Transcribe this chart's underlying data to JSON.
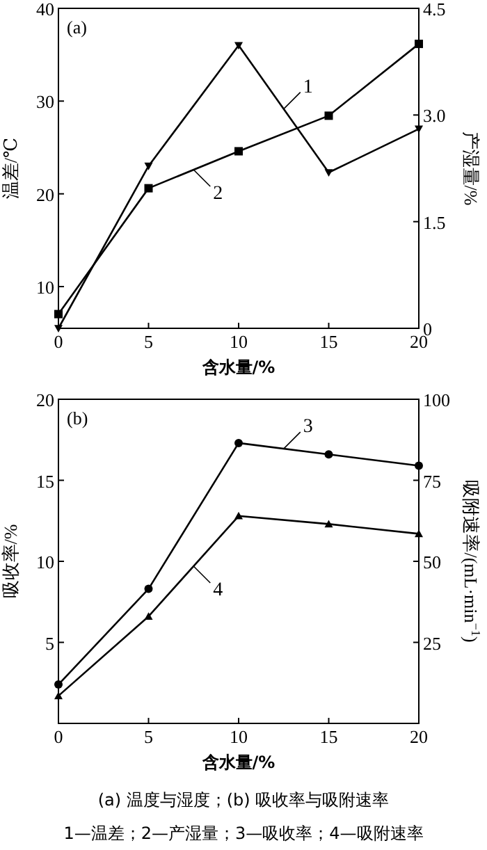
{
  "chart_data": [
    {
      "type": "line",
      "xlabel": "含水量/%",
      "ylabel": "温差/℃",
      "y2label": "产湿量/%",
      "annotations": [
        "(a)"
      ],
      "x": [
        0,
        5,
        10,
        15,
        20
      ],
      "xlim": [
        0,
        20
      ],
      "xticks": [
        0,
        5,
        10,
        15,
        20
      ],
      "ylim": [
        5.5,
        40
      ],
      "yticks": [
        10,
        20,
        30,
        40
      ],
      "y2lim": [
        0,
        4.5
      ],
      "y2ticks": [
        0,
        1.5,
        {
          "value": 3,
          "label": "3.0"
        },
        4.5
      ],
      "grid": false,
      "legend": "top right",
      "line_style": "solid",
      "series": [
        {
          "name": "1",
          "color": "#000000",
          "marker": "triangle-down",
          "values": [
            5.5,
            23,
            36,
            22.3,
            27
          ]
        },
        {
          "name": "2",
          "color": "#000000",
          "marker": "square",
          "axis": "y2",
          "values": [
            0.2,
            1.97,
            2.49,
            2.99,
            4.0
          ]
        }
      ]
    },
    {
      "type": "line",
      "xlabel": "含水量/%",
      "ylabel": "吸收率/%",
      "y2label": "吸附速率/(mL·min$^{−1}$)",
      "annotations": [
        "(b)",
        "(a) 温度与湿度；(b) 吸收率与吸附速率",
        "1—温差；2—产湿量；3—吸收率；4—吸附速率"
      ],
      "x": [
        0,
        5,
        10,
        15,
        20
      ],
      "xlim": [
        0,
        20
      ],
      "xticks": [
        0,
        5,
        10,
        15,
        20
      ],
      "ylim": [
        0,
        20
      ],
      "yticks": [
        5,
        10,
        15,
        20
      ],
      "y2lim": [
        0,
        100
      ],
      "y2ticks": [
        25,
        50,
        75,
        100
      ],
      "grid": false,
      "legend": "top right",
      "line_style": "solid",
      "series": [
        {
          "name": "3",
          "color": "#000000",
          "marker": "circle",
          "values": [
            2.4,
            8.3,
            17.3,
            16.6,
            15.9
          ]
        },
        {
          "name": "4",
          "color": "#000000",
          "marker": "triangle",
          "axis": "y2",
          "values": [
            8.5,
            33,
            64,
            61.5,
            58.5
          ]
        }
      ]
    }
  ]
}
